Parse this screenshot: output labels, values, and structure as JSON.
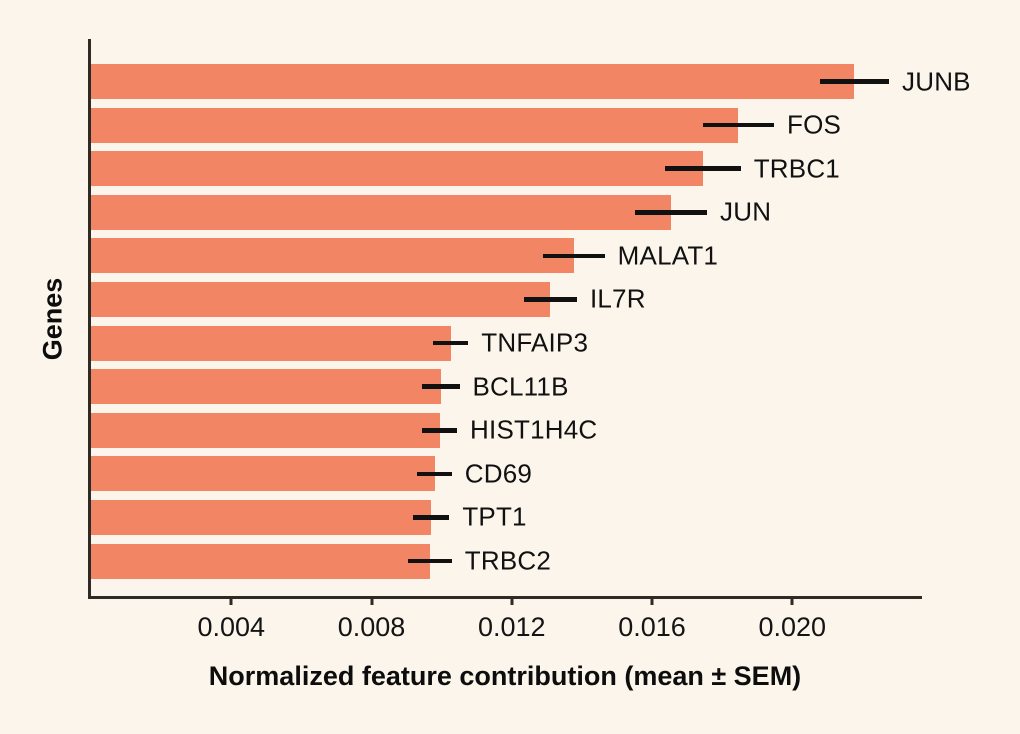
{
  "colors": {
    "background": "#FBF5EC",
    "bar": "#F28664",
    "axis": "#2E2B27",
    "error_bar": "#111111",
    "text": "#111111"
  },
  "chart_data": {
    "type": "bar",
    "orientation": "horizontal",
    "title": "",
    "xlabel": "Normalized feature contribution (mean ± SEM)",
    "ylabel": "Genes",
    "categories": [
      "JUNB",
      "FOS",
      "TRBC1",
      "JUN",
      "MALAT1",
      "IL7R",
      "TNFAIP3",
      "BCL11B",
      "HIST1H4C",
      "CD69",
      "TPT1",
      "TRBC2"
    ],
    "series": [
      {
        "name": "mean",
        "values": [
          0.02177,
          0.01846,
          0.01745,
          0.01654,
          0.01377,
          0.0131,
          0.01026,
          0.00997,
          0.00994,
          0.0098,
          0.0097,
          0.00967
        ]
      },
      {
        "name": "sem",
        "values": [
          0.00099,
          0.00102,
          0.00108,
          0.00103,
          0.00088,
          0.00076,
          0.0005,
          0.00054,
          0.0005,
          0.00049,
          0.00052,
          0.00062
        ]
      }
    ],
    "xlim": [
      0,
      0.0237
    ],
    "xticks": [
      0.004,
      0.008,
      0.012,
      0.016,
      0.02
    ],
    "xtick_labels": [
      "0.004",
      "0.008",
      "0.012",
      "0.016",
      "0.020"
    ],
    "grid": false,
    "legend_position": "none",
    "error_bars": "horizontal, no caps",
    "bar_label_position": "right of error bar end"
  }
}
